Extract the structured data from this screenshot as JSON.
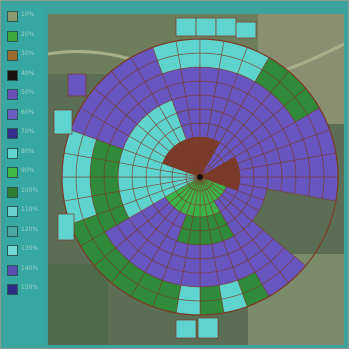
{
  "legend": {
    "items": [
      {
        "label": "10%",
        "color": "#8a9a6e",
        "icon": "legend-swatch"
      },
      {
        "label": "20%",
        "color": "#3fa83a",
        "icon": "legend-swatch"
      },
      {
        "label": "30%",
        "color": "#9c6b2e",
        "icon": "legend-swatch"
      },
      {
        "label": "40%",
        "color": "#1a1410",
        "icon": "legend-swatch"
      },
      {
        "label": "50%",
        "color": "#6a4fb6",
        "icon": "legend-swatch"
      },
      {
        "label": "60%",
        "color": "#6b5cc0",
        "icon": "legend-swatch"
      },
      {
        "label": "70%",
        "color": "#342f8c",
        "icon": "legend-swatch"
      },
      {
        "label": "80%",
        "color": "#5fd6d0",
        "icon": "legend-swatch"
      },
      {
        "label": "90%",
        "color": "#3cba44",
        "icon": "legend-swatch"
      },
      {
        "label": "100%",
        "color": "#2e7d33",
        "icon": "legend-swatch"
      },
      {
        "label": "110%",
        "color": "#6ad3cd",
        "icon": "legend-swatch"
      },
      {
        "label": "120%",
        "color": "#4aa8a2",
        "icon": "legend-swatch"
      },
      {
        "label": "130%",
        "color": "#71d8d3",
        "icon": "legend-swatch"
      },
      {
        "label": "140%",
        "color": "#5a4fb0",
        "icon": "legend-swatch"
      },
      {
        "label": "150%",
        "color": "#2e2a85",
        "icon": "legend-swatch"
      }
    ]
  },
  "palette": {
    "purple": "#6756bf",
    "dark_purple": "#3a3296",
    "cyan": "#5fd3ce",
    "green": "#2f8a3a",
    "light_green": "#3cb34a",
    "brown": "#7a3b2a",
    "grid_line": "#7a3a24"
  }
}
